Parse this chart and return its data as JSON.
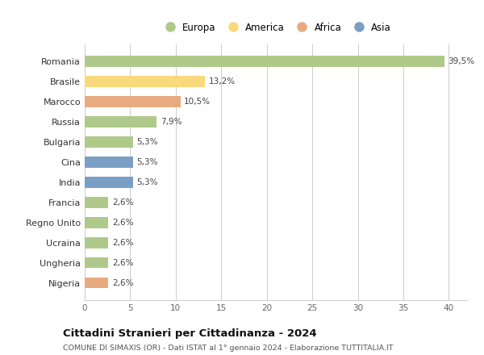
{
  "countries": [
    "Romania",
    "Brasile",
    "Marocco",
    "Russia",
    "Bulgaria",
    "Cina",
    "India",
    "Francia",
    "Regno Unito",
    "Ucraina",
    "Ungheria",
    "Nigeria"
  ],
  "values": [
    39.5,
    13.2,
    10.5,
    7.9,
    5.3,
    5.3,
    5.3,
    2.6,
    2.6,
    2.6,
    2.6,
    2.6
  ],
  "labels": [
    "39,5%",
    "13,2%",
    "10,5%",
    "7,9%",
    "5,3%",
    "5,3%",
    "5,3%",
    "2,6%",
    "2,6%",
    "2,6%",
    "2,6%",
    "2,6%"
  ],
  "colors": [
    "#afc98a",
    "#f9d97c",
    "#e8ab80",
    "#afc98a",
    "#afc98a",
    "#7b9fc4",
    "#7b9fc4",
    "#afc98a",
    "#afc98a",
    "#afc98a",
    "#afc98a",
    "#e8ab80"
  ],
  "legend_labels": [
    "Europa",
    "America",
    "Africa",
    "Asia"
  ],
  "legend_colors": [
    "#afc98a",
    "#f9d97c",
    "#e8ab80",
    "#7b9fc4"
  ],
  "title": "Cittadini Stranieri per Cittadinanza - 2024",
  "subtitle": "COMUNE DI SIMAXIS (OR) - Dati ISTAT al 1° gennaio 2024 - Elaborazione TUTTITALIA.IT",
  "xlim": [
    0,
    42
  ],
  "xticks": [
    0,
    5,
    10,
    15,
    20,
    25,
    30,
    35,
    40
  ],
  "background_color": "#ffffff",
  "grid_color": "#cccccc"
}
